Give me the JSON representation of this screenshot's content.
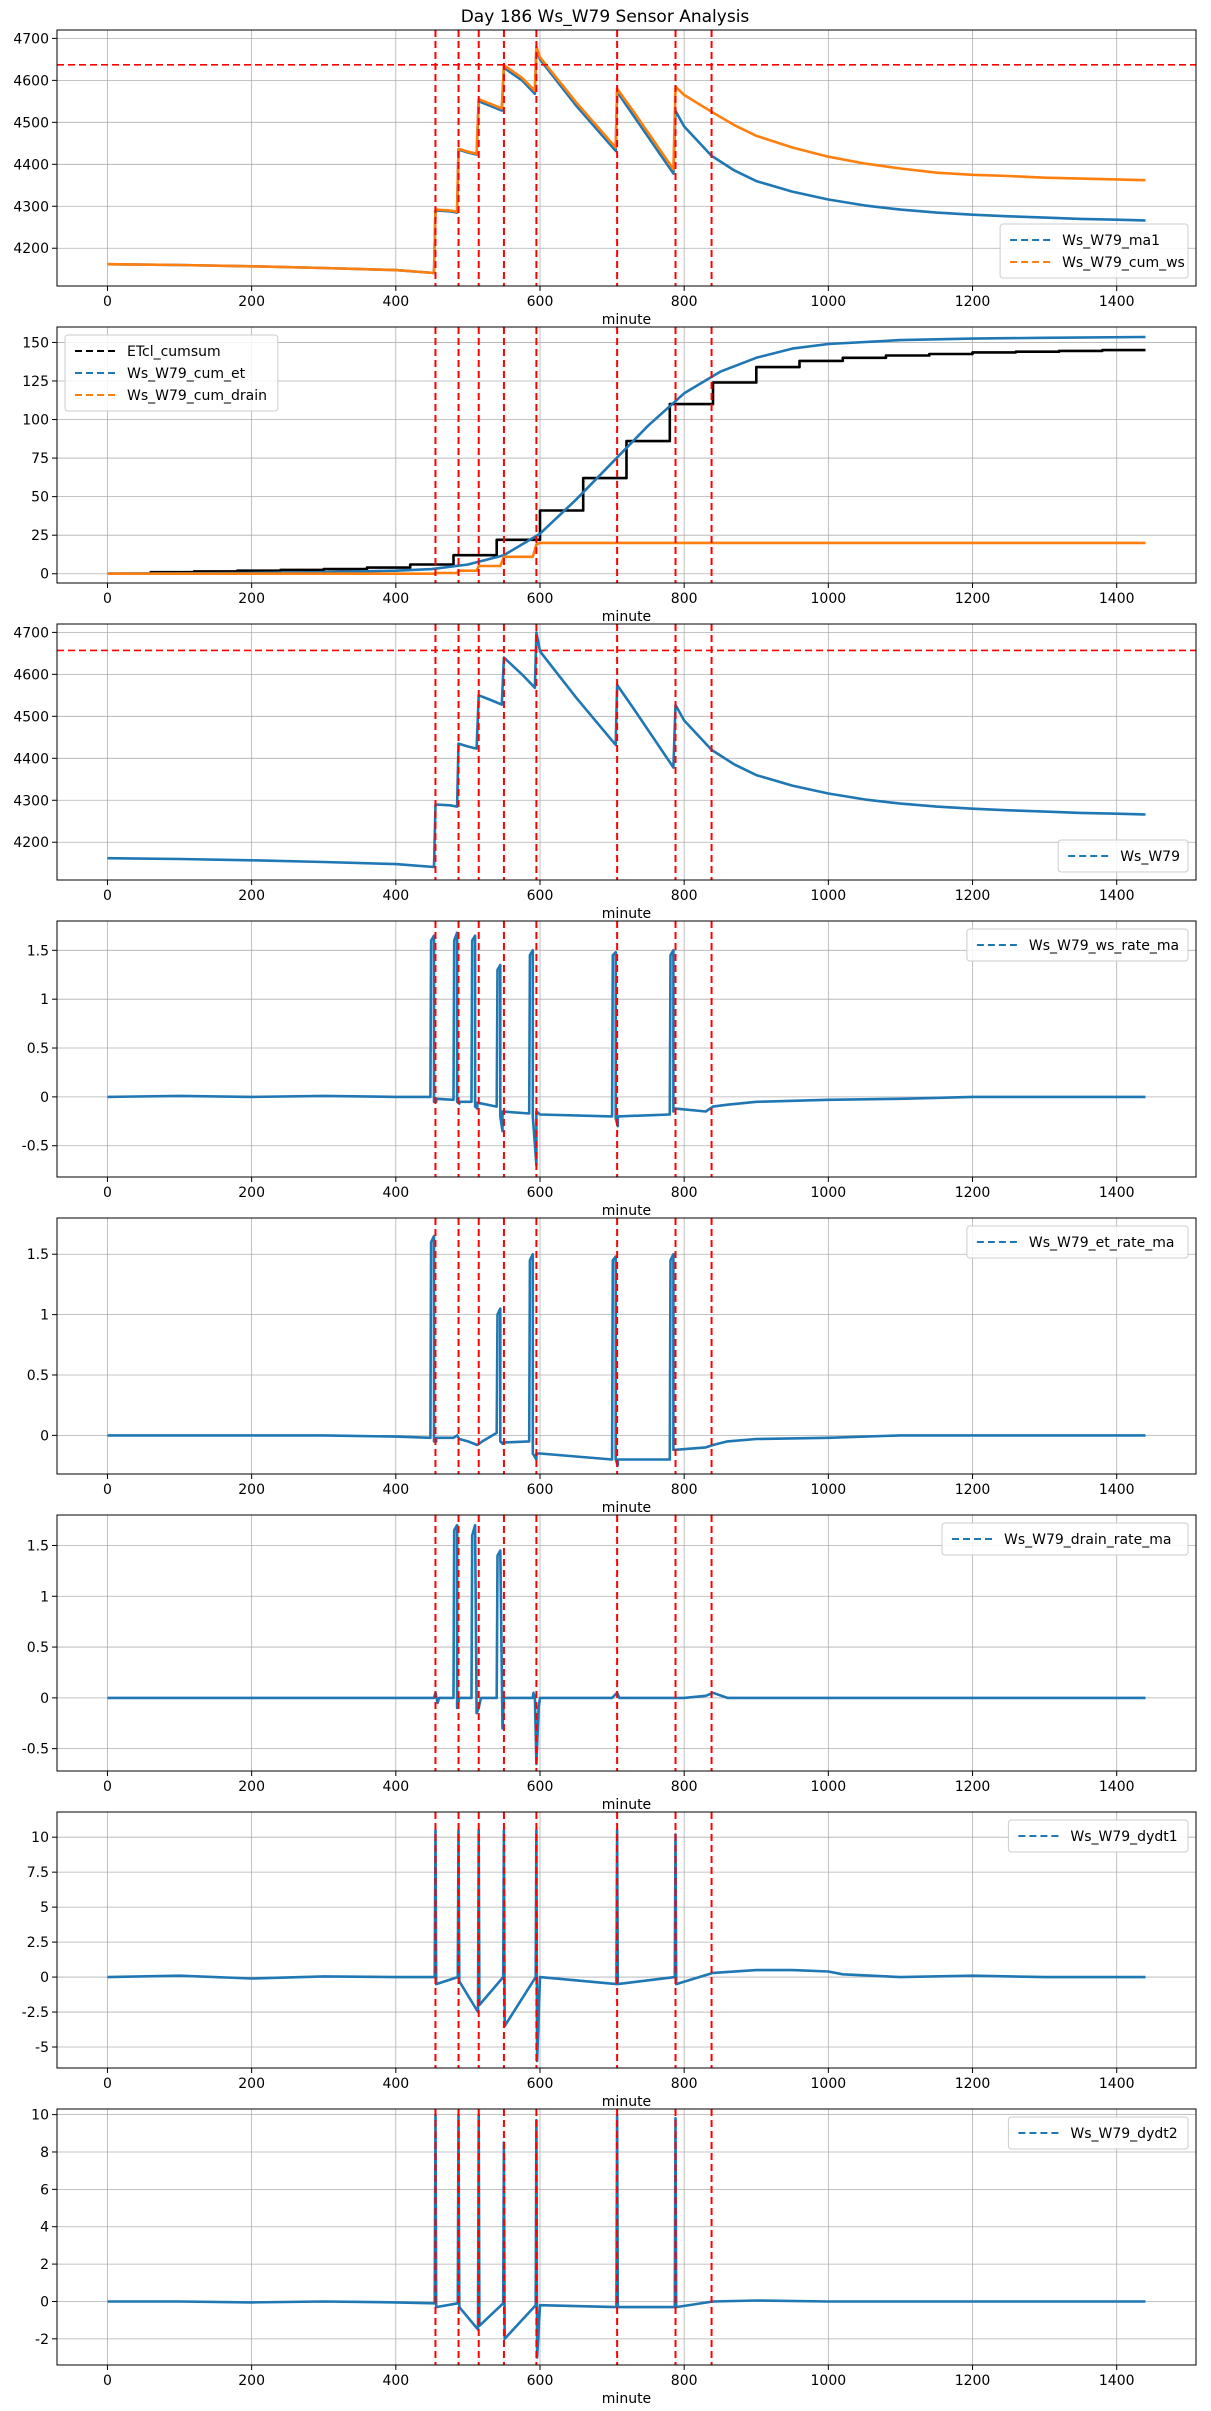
{
  "figure": {
    "title": "Day 186 Ws_W79 Sensor Analysis"
  },
  "colors": {
    "blue": "#1f77b4",
    "orange": "#ff7f0e",
    "black": "#000000",
    "red": "#ff0000",
    "grid": "#b0b0b0"
  },
  "shared": {
    "xlabel": "minute",
    "xlim": [
      -70,
      1510
    ],
    "xticks": [
      0,
      200,
      400,
      600,
      800,
      1000,
      1200,
      1400
    ],
    "event_lines": [
      455,
      487,
      515,
      550,
      595,
      707,
      788,
      838
    ]
  },
  "chart_data": [
    {
      "type": "line",
      "name": "panel-ws-ma",
      "xlabel": "minute",
      "ylim": [
        4110,
        4720
      ],
      "yticks": [
        4200,
        4300,
        4400,
        4500,
        4600,
        4700
      ],
      "hline": 4637,
      "legend": "lower-right",
      "series": [
        {
          "name": "Ws_W79_ma1",
          "color": "#1f77b4",
          "x": [
            0,
            100,
            200,
            300,
            400,
            453,
            455,
            475,
            485,
            487,
            500,
            512,
            515,
            530,
            547,
            550,
            575,
            593,
            595,
            600,
            650,
            705,
            707,
            730,
            785,
            788,
            800,
            838,
            870,
            900,
            950,
            1000,
            1050,
            1100,
            1150,
            1200,
            1250,
            1300,
            1350,
            1400,
            1440
          ],
          "y": [
            4162,
            4160,
            4157,
            4153,
            4148,
            4141,
            4290,
            4288,
            4285,
            4435,
            4428,
            4423,
            4550,
            4540,
            4528,
            4630,
            4600,
            4568,
            4675,
            4650,
            4540,
            4432,
            4573,
            4515,
            4378,
            4527,
            4490,
            4420,
            4385,
            4360,
            4335,
            4316,
            4302,
            4292,
            4285,
            4280,
            4276,
            4273,
            4270,
            4268,
            4266
          ]
        },
        {
          "name": "Ws_W79_cum_ws",
          "color": "#ff7f0e",
          "x": [
            0,
            100,
            200,
            300,
            400,
            453,
            455,
            475,
            485,
            487,
            500,
            512,
            515,
            530,
            547,
            550,
            575,
            593,
            595,
            600,
            650,
            705,
            707,
            730,
            785,
            788,
            800,
            838,
            870,
            900,
            950,
            1000,
            1050,
            1100,
            1150,
            1200,
            1250,
            1300,
            1350,
            1400,
            1440
          ],
          "y": [
            4162,
            4160,
            4157,
            4153,
            4148,
            4141,
            4292,
            4290,
            4287,
            4437,
            4430,
            4425,
            4555,
            4545,
            4533,
            4636,
            4606,
            4575,
            4680,
            4655,
            4548,
            4440,
            4580,
            4525,
            4388,
            4585,
            4565,
            4525,
            4493,
            4468,
            4440,
            4418,
            4402,
            4390,
            4380,
            4375,
            4372,
            4368,
            4366,
            4364,
            4362
          ]
        }
      ]
    },
    {
      "type": "line",
      "name": "panel-cumulative",
      "xlabel": "minute",
      "ylim": [
        -6,
        160
      ],
      "yticks": [
        0,
        25,
        50,
        75,
        100,
        125,
        150
      ],
      "legend": "upper-left",
      "series": [
        {
          "name": "ETcl_cumsum",
          "color": "#000000",
          "dashed": true,
          "x": [
            0,
            60,
            60,
            120,
            120,
            180,
            180,
            240,
            240,
            300,
            300,
            360,
            360,
            420,
            420,
            480,
            480,
            540,
            540,
            600,
            600,
            660,
            660,
            720,
            720,
            780,
            780,
            840,
            840,
            900,
            900,
            960,
            960,
            1020,
            1020,
            1080,
            1080,
            1140,
            1140,
            1200,
            1200,
            1260,
            1260,
            1320,
            1320,
            1380,
            1380,
            1440
          ],
          "y": [
            0,
            0,
            1,
            1,
            1.5,
            1.5,
            2,
            2,
            2.5,
            2.5,
            3,
            3,
            4,
            4,
            6,
            6,
            12,
            12,
            22,
            22,
            41,
            41,
            62,
            62,
            86,
            86,
            110,
            110,
            124,
            124,
            134,
            134,
            138,
            138,
            140,
            140,
            141.5,
            141.5,
            142.5,
            142.5,
            143.5,
            143.5,
            144,
            144,
            144.5,
            144.5,
            145,
            145
          ]
        },
        {
          "name": "Ws_W79_cum_et",
          "color": "#1f77b4",
          "dashed": true,
          "x": [
            0,
            200,
            300,
            400,
            450,
            500,
            550,
            600,
            650,
            700,
            750,
            800,
            850,
            900,
            950,
            1000,
            1100,
            1200,
            1300,
            1440
          ],
          "y": [
            0,
            0.5,
            1,
            2,
            3,
            6,
            12,
            26,
            48,
            72,
            96,
            117,
            131,
            140,
            146,
            149,
            151.5,
            152.5,
            153,
            153.5
          ]
        },
        {
          "name": "Ws_W79_cum_drain",
          "color": "#ff7f0e",
          "dashed": true,
          "x": [
            0,
            300,
            453,
            455,
            485,
            487,
            512,
            515,
            545,
            550,
            590,
            595,
            600,
            700,
            800,
            1000,
            1200,
            1440
          ],
          "y": [
            0,
            0,
            0,
            0.5,
            0.5,
            2,
            2,
            5,
            5,
            11,
            11,
            19,
            20,
            20,
            20,
            20,
            20,
            20
          ]
        }
      ]
    },
    {
      "type": "line",
      "name": "panel-ws",
      "xlabel": "minute",
      "ylim": [
        4110,
        4720
      ],
      "yticks": [
        4200,
        4300,
        4400,
        4500,
        4600,
        4700
      ],
      "hline": 4657,
      "legend": "lower-right",
      "series": [
        {
          "name": "Ws_W79",
          "color": "#1f77b4",
          "x": [
            0,
            100,
            200,
            300,
            400,
            453,
            455,
            475,
            485,
            487,
            500,
            512,
            515,
            530,
            547,
            550,
            575,
            593,
            595,
            600,
            650,
            705,
            707,
            730,
            785,
            788,
            800,
            838,
            870,
            900,
            950,
            1000,
            1050,
            1100,
            1150,
            1200,
            1250,
            1300,
            1350,
            1400,
            1440
          ],
          "y": [
            4162,
            4160,
            4157,
            4153,
            4148,
            4141,
            4290,
            4288,
            4285,
            4435,
            4428,
            4423,
            4550,
            4540,
            4528,
            4640,
            4600,
            4568,
            4700,
            4655,
            4545,
            4432,
            4575,
            4518,
            4378,
            4527,
            4490,
            4420,
            4385,
            4360,
            4335,
            4316,
            4302,
            4292,
            4285,
            4280,
            4276,
            4273,
            4270,
            4268,
            4266
          ]
        }
      ]
    },
    {
      "type": "line",
      "name": "panel-ws-rate",
      "xlabel": "minute",
      "ylim": [
        -0.82,
        1.8
      ],
      "yticks": [
        -0.5,
        0,
        0.5,
        1,
        1.5
      ],
      "legend": "upper-right",
      "series": [
        {
          "name": "Ws_W79_ws_rate_ma",
          "color": "#1f77b4",
          "x": [
            0,
            100,
            200,
            300,
            400,
            448,
            449,
            453,
            453,
            456,
            456,
            480,
            481,
            485,
            485,
            488,
            488,
            505,
            506,
            510,
            510,
            513,
            513,
            540,
            541,
            545,
            545,
            548,
            548,
            585,
            586,
            590,
            590,
            595,
            595,
            600,
            700,
            701,
            705,
            705,
            708,
            708,
            780,
            781,
            785,
            785,
            788,
            788,
            830,
            840,
            860,
            900,
            1000,
            1100,
            1200,
            1300,
            1440
          ],
          "y": [
            0,
            0.01,
            0,
            0.01,
            0,
            0,
            1.6,
            1.65,
            -0.05,
            -0.05,
            -0.02,
            -0.03,
            1.6,
            1.68,
            -0.05,
            -0.07,
            -0.05,
            -0.05,
            1.6,
            1.65,
            -0.1,
            -0.12,
            -0.06,
            -0.1,
            1.3,
            1.35,
            -0.2,
            -0.35,
            -0.15,
            -0.17,
            1.45,
            1.5,
            -0.2,
            -0.7,
            -0.15,
            -0.18,
            -0.2,
            1.45,
            1.48,
            -0.22,
            -0.3,
            -0.2,
            -0.18,
            1.45,
            1.5,
            -0.15,
            -0.12,
            -0.12,
            -0.15,
            -0.1,
            -0.08,
            -0.05,
            -0.03,
            -0.02,
            0,
            0,
            0
          ]
        }
      ]
    },
    {
      "type": "line",
      "name": "panel-et-rate",
      "xlabel": "minute",
      "ylim": [
        -0.32,
        1.8
      ],
      "yticks": [
        0,
        0.5,
        1,
        1.5
      ],
      "legend": "upper-right",
      "series": [
        {
          "name": "Ws_W79_et_rate_ma",
          "color": "#1f77b4",
          "x": [
            0,
            100,
            200,
            300,
            400,
            448,
            449,
            453,
            453,
            456,
            456,
            480,
            485,
            488,
            500,
            513,
            520,
            540,
            541,
            545,
            545,
            548,
            548,
            585,
            586,
            590,
            590,
            595,
            595,
            600,
            700,
            701,
            705,
            705,
            708,
            708,
            780,
            781,
            785,
            785,
            788,
            788,
            830,
            840,
            860,
            900,
            1000,
            1100,
            1200,
            1300,
            1440
          ],
          "y": [
            0,
            0,
            0,
            0,
            -0.01,
            -0.02,
            1.6,
            1.65,
            -0.05,
            -0.05,
            -0.02,
            -0.02,
            0,
            -0.03,
            -0.05,
            -0.08,
            -0.05,
            0.02,
            1.0,
            1.05,
            -0.05,
            -0.07,
            -0.06,
            -0.05,
            1.45,
            1.5,
            -0.15,
            -0.2,
            -0.15,
            -0.15,
            -0.2,
            1.45,
            1.48,
            -0.2,
            -0.25,
            -0.2,
            -0.2,
            1.45,
            1.5,
            -0.12,
            -0.12,
            -0.12,
            -0.1,
            -0.08,
            -0.05,
            -0.03,
            -0.02,
            0,
            0,
            0,
            0
          ]
        }
      ]
    },
    {
      "type": "line",
      "name": "panel-drain-rate",
      "xlabel": "minute",
      "ylim": [
        -0.72,
        1.8
      ],
      "yticks": [
        -0.5,
        0,
        0.5,
        1,
        1.5
      ],
      "legend": "upper-right",
      "series": [
        {
          "name": "Ws_W79_drain_rate_ma",
          "color": "#1f77b4",
          "x": [
            0,
            300,
            453,
            455,
            458,
            460,
            480,
            481,
            485,
            485,
            488,
            490,
            505,
            506,
            510,
            512,
            515,
            518,
            540,
            541,
            545,
            548,
            550,
            555,
            590,
            591,
            593,
            595,
            598,
            600,
            700,
            707,
            710,
            720,
            800,
            830,
            840,
            860,
            900,
            1000,
            1200,
            1440
          ],
          "y": [
            0,
            0,
            0,
            0.05,
            -0.05,
            0,
            0,
            1.65,
            1.7,
            -0.1,
            0,
            0,
            0,
            1.6,
            1.7,
            -0.15,
            -0.1,
            0,
            0,
            1.4,
            1.45,
            -0.3,
            0,
            0,
            0,
            0.05,
            0,
            -0.65,
            -0.1,
            0,
            0,
            0.05,
            0,
            0,
            0,
            0.02,
            0.05,
            0,
            0,
            0,
            0,
            0
          ]
        }
      ]
    },
    {
      "type": "line",
      "name": "panel-dydt1",
      "xlabel": "minute",
      "ylim": [
        -6.5,
        11.8
      ],
      "yticks": [
        -5,
        -2.5,
        0,
        2.5,
        5,
        7.5,
        10
      ],
      "legend": "upper-right",
      "series": [
        {
          "name": "Ws_W79_dydt1",
          "color": "#1f77b4",
          "x": [
            0,
            100,
            200,
            300,
            400,
            454,
            455,
            456,
            486,
            487,
            488,
            514,
            515,
            516,
            549,
            550,
            551,
            594,
            595,
            596,
            600,
            706,
            707,
            708,
            787,
            788,
            789,
            840,
            900,
            950,
            1000,
            1020,
            1100,
            1200,
            1300,
            1440
          ],
          "y": [
            0,
            0.1,
            -0.1,
            0.05,
            0,
            0,
            10.5,
            -0.5,
            0,
            10.5,
            -0.3,
            -2.5,
            10.5,
            -2,
            0,
            10.5,
            -3.5,
            0,
            10.5,
            -6,
            0,
            -0.5,
            10.5,
            -0.5,
            0,
            10.2,
            -0.5,
            0.3,
            0.5,
            0.5,
            0.4,
            0.2,
            0,
            0.1,
            0,
            0
          ]
        }
      ]
    },
    {
      "type": "line",
      "name": "panel-dydt2",
      "xlabel": "minute",
      "ylim": [
        -3.4,
        10.3
      ],
      "yticks": [
        -2,
        0,
        2,
        4,
        6,
        8,
        10
      ],
      "legend": "upper-right",
      "series": [
        {
          "name": "Ws_W79_dydt2",
          "color": "#1f77b4",
          "x": [
            0,
            100,
            200,
            300,
            400,
            454,
            455,
            456,
            486,
            487,
            488,
            514,
            515,
            516,
            549,
            550,
            551,
            594,
            595,
            596,
            600,
            706,
            707,
            708,
            787,
            788,
            789,
            840,
            900,
            1000,
            1100,
            1200,
            1300,
            1440
          ],
          "y": [
            0,
            0,
            -0.05,
            0,
            -0.05,
            -0.1,
            10,
            -0.3,
            -0.1,
            10,
            -0.3,
            -1.5,
            10,
            -1.3,
            -0.1,
            8.5,
            -2,
            -0.2,
            9.7,
            -3,
            -0.2,
            -0.3,
            10,
            -0.3,
            -0.3,
            9.8,
            -0.3,
            0,
            0.05,
            0,
            0,
            0,
            0,
            0
          ]
        }
      ]
    }
  ]
}
